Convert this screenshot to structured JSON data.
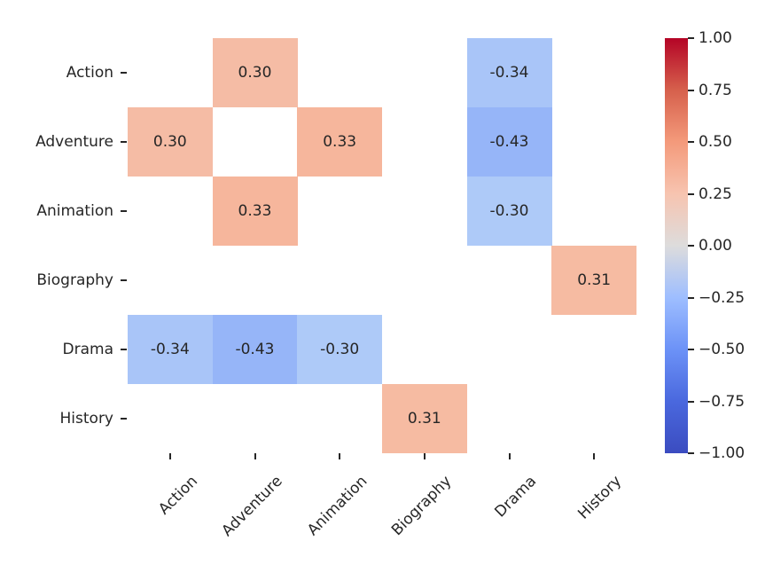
{
  "chart_data": {
    "type": "heatmap",
    "title": "",
    "xlabel": "",
    "ylabel": "",
    "categories": [
      "Action",
      "Adventure",
      "Animation",
      "Biography",
      "Drama",
      "History"
    ],
    "x_tick_labels": [
      "Action",
      "Adventure",
      "Animation",
      "Biography",
      "Drama",
      "History"
    ],
    "y_tick_labels": [
      "Action",
      "Adventure",
      "Animation",
      "Biography",
      "Drama",
      "History"
    ],
    "x_tick_rotation_deg": 45,
    "grid": false,
    "cells": [
      {
        "row": 0,
        "col": 1,
        "value": 0.3,
        "label": "0.30",
        "color": "#f5bca5"
      },
      {
        "row": 0,
        "col": 4,
        "value": -0.34,
        "label": "-0.34",
        "color": "#a9c5f8"
      },
      {
        "row": 1,
        "col": 0,
        "value": 0.3,
        "label": "0.30",
        "color": "#f5bca5"
      },
      {
        "row": 1,
        "col": 2,
        "value": 0.33,
        "label": "0.33",
        "color": "#f6b69c"
      },
      {
        "row": 1,
        "col": 4,
        "value": -0.43,
        "label": "-0.43",
        "color": "#96b5f8"
      },
      {
        "row": 2,
        "col": 1,
        "value": 0.33,
        "label": "0.33",
        "color": "#f6b69c"
      },
      {
        "row": 2,
        "col": 4,
        "value": -0.3,
        "label": "-0.30",
        "color": "#aecaf8"
      },
      {
        "row": 3,
        "col": 5,
        "value": 0.31,
        "label": "0.31",
        "color": "#f6bba2"
      },
      {
        "row": 4,
        "col": 0,
        "value": -0.34,
        "label": "-0.34",
        "color": "#a9c5f8"
      },
      {
        "row": 4,
        "col": 1,
        "value": -0.43,
        "label": "-0.43",
        "color": "#96b5f8"
      },
      {
        "row": 4,
        "col": 2,
        "value": -0.3,
        "label": "-0.30",
        "color": "#aecaf8"
      },
      {
        "row": 5,
        "col": 3,
        "value": 0.31,
        "label": "0.31",
        "color": "#f6bba2"
      }
    ],
    "masked_cells": [
      {
        "row": 1,
        "col": 1,
        "color": "#ffffff"
      }
    ],
    "annotation_color": "#262626",
    "tick_label_color": "#262626",
    "colorbar": {
      "colormap": "coolwarm",
      "min": -1.0,
      "max": 1.0,
      "tick_values": [
        1.0,
        0.75,
        0.5,
        0.25,
        0.0,
        -0.25,
        -0.5,
        -0.75,
        -1.0
      ],
      "tick_labels": [
        "1.00",
        "0.75",
        "0.50",
        "0.25",
        "0.00",
        "−0.25",
        "−0.50",
        "−0.75",
        "−1.00"
      ],
      "gradient_stops": [
        {
          "pos": 0,
          "color": "#b40426"
        },
        {
          "pos": 12.5,
          "color": "#d6604c"
        },
        {
          "pos": 25,
          "color": "#f49a7b"
        },
        {
          "pos": 37.5,
          "color": "#f7c4b0"
        },
        {
          "pos": 50,
          "color": "#dddcdc"
        },
        {
          "pos": 62.5,
          "color": "#9ebeff"
        },
        {
          "pos": 75,
          "color": "#6c92f7"
        },
        {
          "pos": 87.5,
          "color": "#4a68de"
        },
        {
          "pos": 100,
          "color": "#3b4cc0"
        }
      ]
    }
  }
}
